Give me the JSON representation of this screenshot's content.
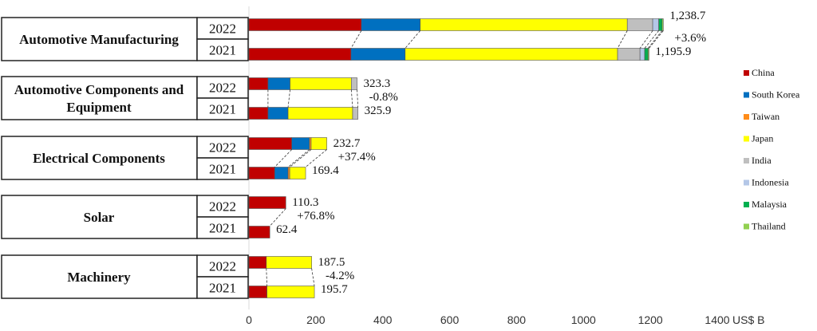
{
  "chart_data": {
    "type": "bar",
    "orientation": "horizontal",
    "stacked": true,
    "xlabel": "US$ B",
    "xlim": [
      0,
      1400
    ],
    "xticks": [
      0,
      200,
      400,
      600,
      800,
      1000,
      1200,
      1400
    ],
    "legend_position": "right",
    "series_names": [
      "China",
      "South Korea",
      "Taiwan",
      "Japan",
      "India",
      "Indonesia",
      "Malaysia",
      "Thailand"
    ],
    "colors": [
      "#c00000",
      "#0070c0",
      "#ff8c1a",
      "#ffff00",
      "#bfbfbf",
      "#b4c7e7",
      "#00b050",
      "#92d050"
    ],
    "groups": [
      {
        "label": "Automotive Manufacturing",
        "change": "+3.6%",
        "rows": [
          {
            "year": "2022",
            "total": "1,238.7",
            "values": [
              336,
              176,
              0,
              619,
              76,
              18,
              10,
              3.7
            ]
          },
          {
            "year": "2021",
            "total": "1,195.9",
            "values": [
              305,
              162,
              0,
              635,
              67,
              14,
              10,
              2.9
            ]
          }
        ]
      },
      {
        "label": "Automotive Components and Equipment",
        "change": "-0.8%",
        "rows": [
          {
            "year": "2022",
            "total": "323.3",
            "values": [
              57,
              66,
              0,
              183,
              17.3,
              0,
              0,
              0
            ]
          },
          {
            "year": "2021",
            "total": "325.9",
            "values": [
              57,
              60,
              0,
              193,
              15.9,
              0,
              0,
              0
            ]
          }
        ]
      },
      {
        "label": "Electrical Components",
        "change": "+37.4%",
        "rows": [
          {
            "year": "2022",
            "total": "232.7",
            "values": [
              128,
              53,
              5,
              46.7,
              0,
              0,
              0,
              0
            ]
          },
          {
            "year": "2021",
            "total": "169.4",
            "values": [
              77,
              40,
              5,
              47.4,
              0,
              0,
              0,
              0
            ]
          }
        ]
      },
      {
        "label": "Solar",
        "change": "+76.8%",
        "rows": [
          {
            "year": "2022",
            "total": "110.3",
            "values": [
              110.3,
              0,
              0,
              0,
              0,
              0,
              0,
              0
            ]
          },
          {
            "year": "2021",
            "total": "62.4",
            "values": [
              62.4,
              0,
              0,
              0,
              0,
              0,
              0,
              0
            ]
          }
        ]
      },
      {
        "label": "Machinery",
        "change": "-4.2%",
        "rows": [
          {
            "year": "2022",
            "total": "187.5",
            "values": [
              52,
              0,
              0,
              135.5,
              0,
              0,
              0,
              0
            ]
          },
          {
            "year": "2021",
            "total": "195.7",
            "values": [
              54,
              0,
              0,
              141.7,
              0,
              0,
              0,
              0
            ]
          }
        ]
      }
    ]
  }
}
